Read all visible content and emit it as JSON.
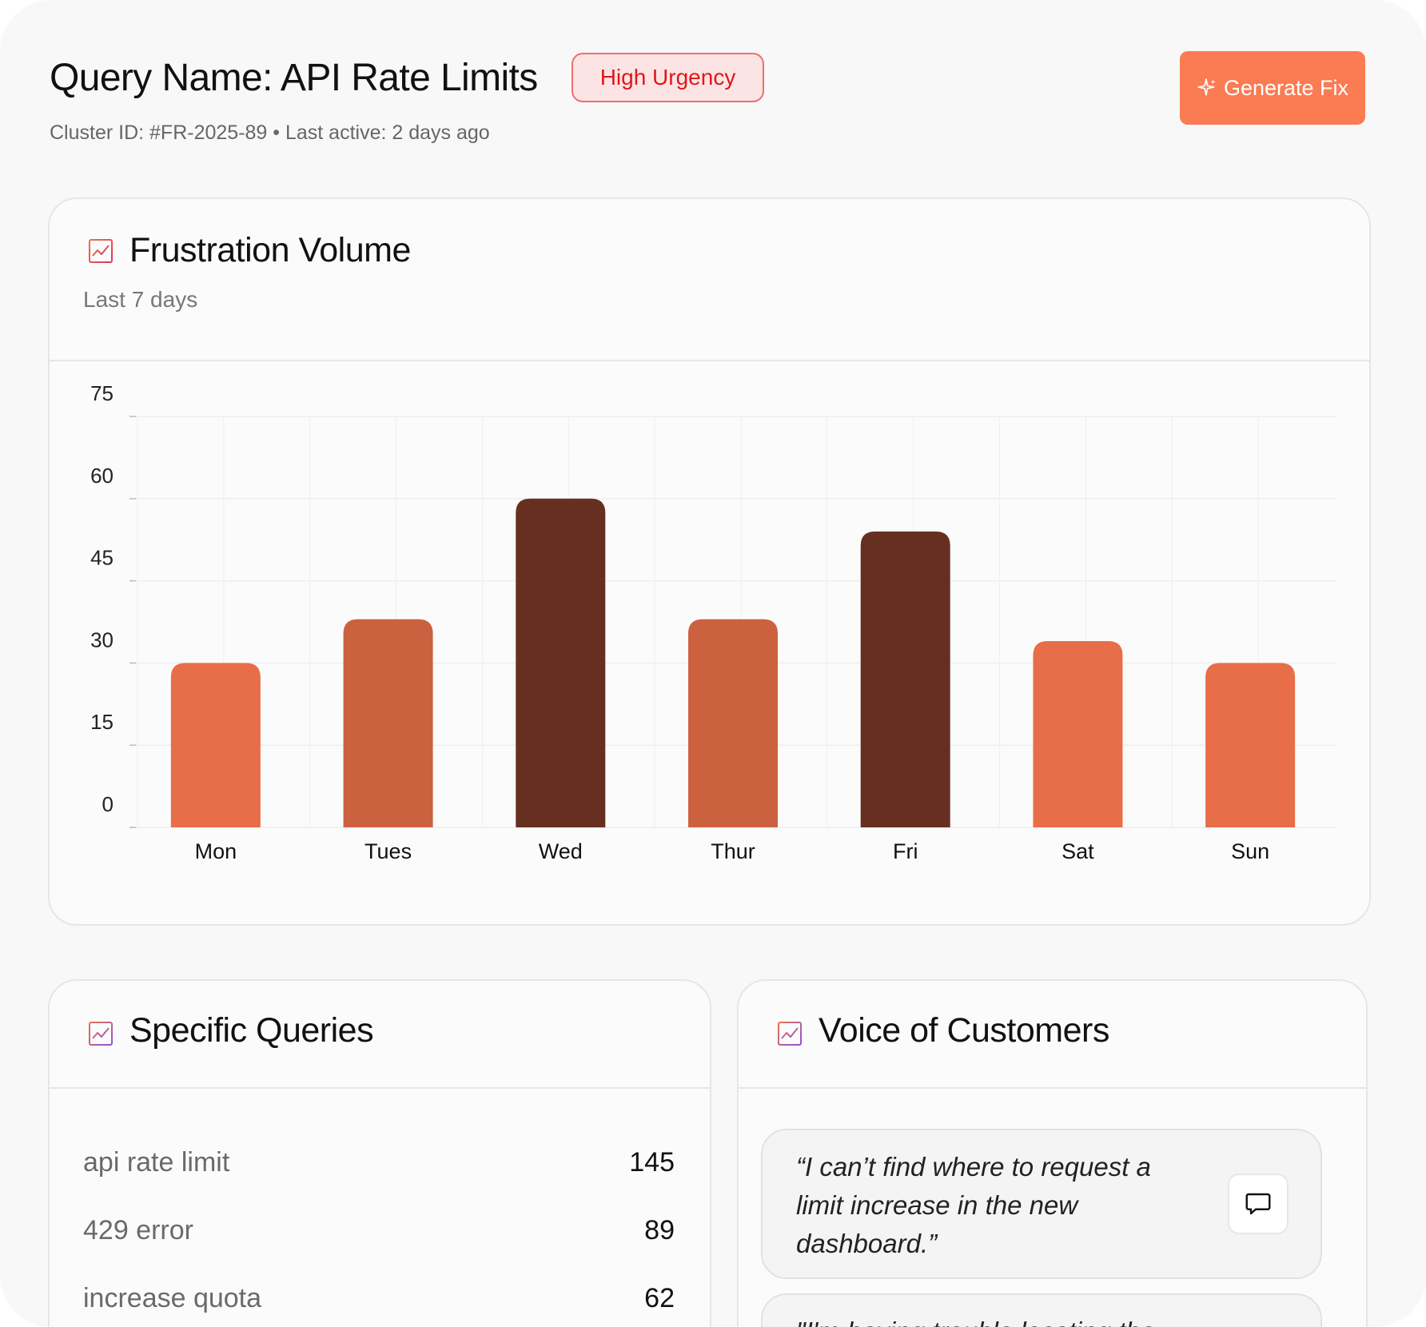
{
  "header": {
    "title": "Query Name: API Rate Limits",
    "urgency_badge": "High Urgency",
    "subtitle": "Cluster ID: #FR-2025-89 • Last active: 2 days ago",
    "generate_button": "Generate Fix"
  },
  "frustration_card": {
    "title": "Frustration Volume",
    "subtitle": "Last 7 days"
  },
  "chart_data": {
    "type": "bar",
    "title": "Frustration Volume",
    "subtitle": "Last 7 days",
    "xlabel": "",
    "ylabel": "",
    "categories": [
      "Mon",
      "Tues",
      "Wed",
      "Thur",
      "Fri",
      "Sat",
      "Sun"
    ],
    "values": [
      30,
      38,
      60,
      38,
      54,
      34,
      30
    ],
    "bar_colors": [
      "#e76e49",
      "#cc6140",
      "#672f20",
      "#cc6140",
      "#672f20",
      "#e76e49",
      "#e76e49"
    ],
    "yticks": [
      0,
      15,
      30,
      45,
      60,
      75
    ],
    "ylim": [
      0,
      75
    ],
    "grid": true,
    "legend": "none"
  },
  "queries_card": {
    "title": "Specific Queries",
    "items": [
      {
        "label": "api rate limit",
        "count": "145"
      },
      {
        "label": "429 error",
        "count": "89"
      },
      {
        "label": "increase quota",
        "count": "62"
      }
    ]
  },
  "voice_card": {
    "title": "Voice of Customers",
    "quotes": [
      {
        "text": "“I can’t find where to request a limit increase in the new dashboard.”"
      },
      {
        "text": "\"I'm having trouble locating the"
      }
    ]
  },
  "icons": {
    "generate": "sparkle-icon",
    "card": "trend-chart-icon",
    "quote_action": "speech-bubble-icon"
  },
  "colors": {
    "accent": "#fb7b52",
    "urgency_text": "#e0171a",
    "urgency_bg": "#fde4e4",
    "urgency_border": "#f06d6d"
  }
}
